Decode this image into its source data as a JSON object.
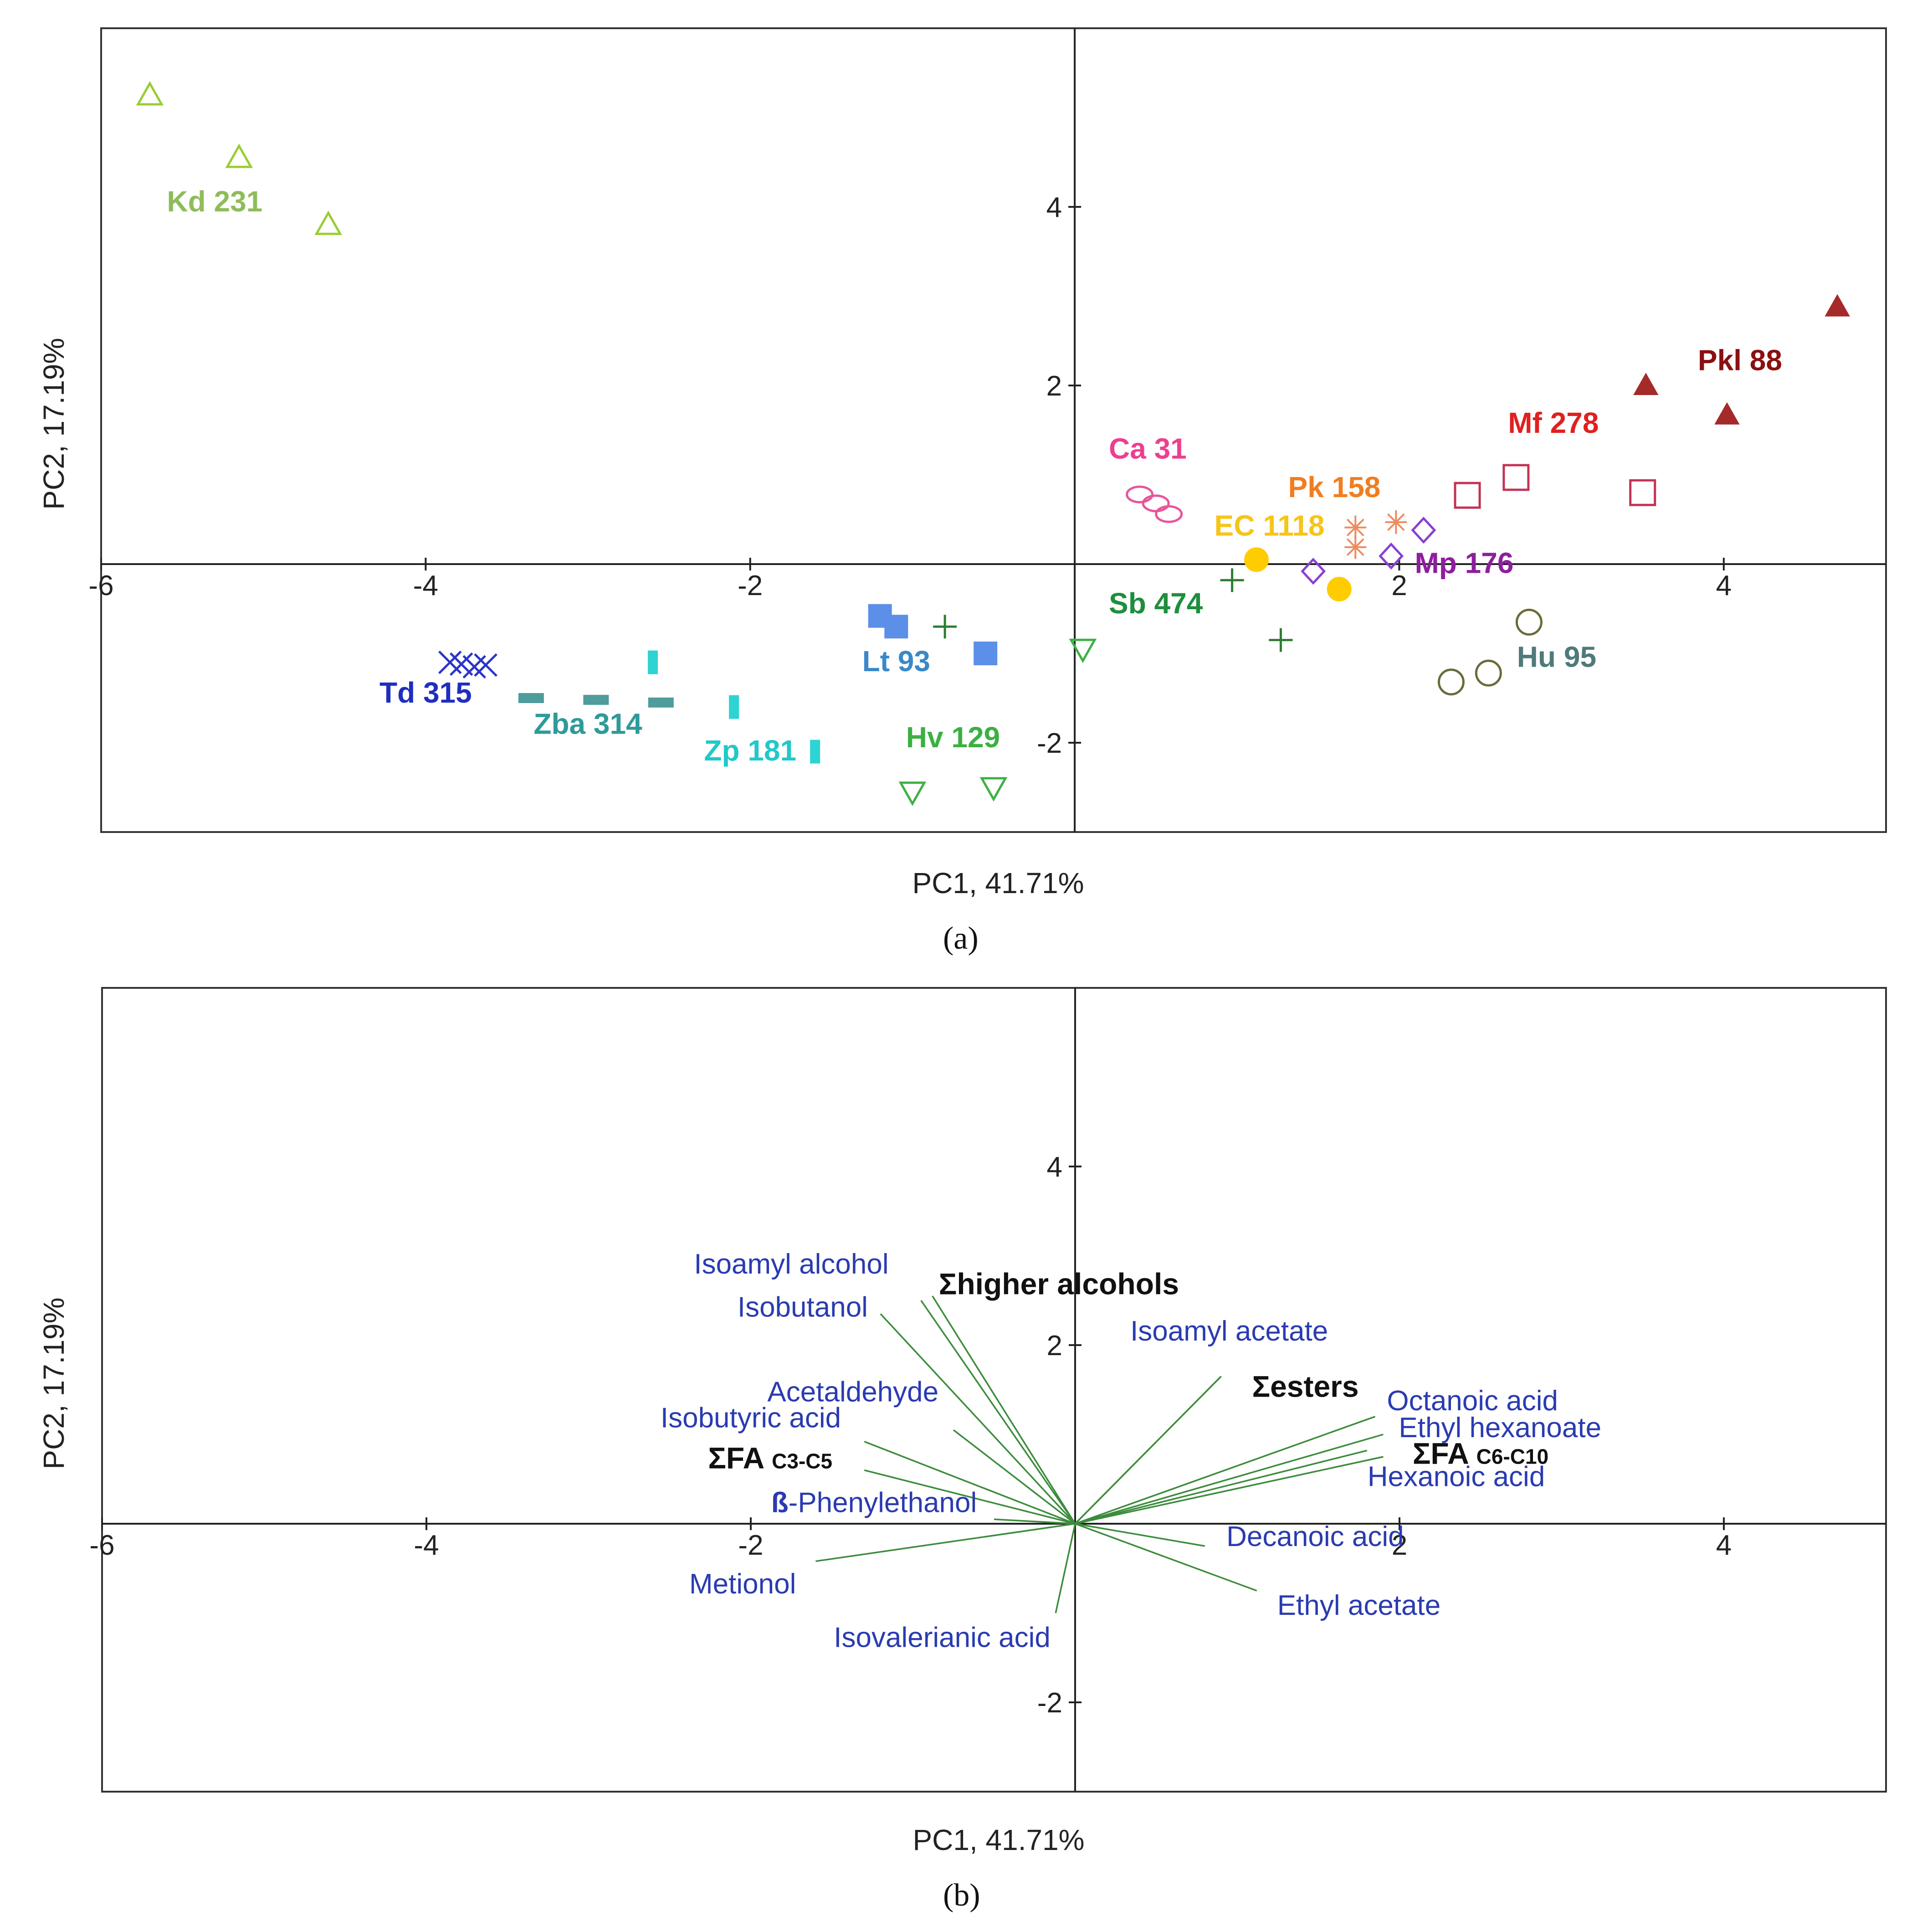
{
  "chart_data": [
    {
      "type": "scatter",
      "panel": "a",
      "xlabel": "PC1, 41.71%",
      "ylabel": "PC2, 17.19%",
      "xlim": [
        -6,
        5
      ],
      "ylim": [
        -3,
        6
      ],
      "xticks": [
        -6,
        -4,
        -2,
        2,
        4
      ],
      "yticks": [
        4,
        2,
        -2
      ],
      "groups": [
        {
          "name": "Kd 231",
          "marker": "triangle-open",
          "color": "#9ACD32",
          "label_color": "#8FBC5A",
          "points": [
            [
              -5.7,
              5.25
            ],
            [
              -5.15,
              4.55
            ],
            [
              -4.6,
              3.8
            ]
          ],
          "label_at": [
            -5.3,
            3.95
          ]
        },
        {
          "name": "Td 315",
          "marker": "x",
          "color": "#2B35C8",
          "label_color": "#1F2EBF",
          "points": [
            [
              -3.85,
              -1.1
            ],
            [
              -3.78,
              -1.12
            ],
            [
              -3.7,
              -1.15
            ],
            [
              -3.63,
              -1.13
            ]
          ],
          "label_at": [
            -4.0,
            -1.55
          ]
        },
        {
          "name": "Zba 314",
          "marker": "hbar",
          "color": "#4F9C9C",
          "label_color": "#2E9A9A",
          "points": [
            [
              -3.35,
              -1.5
            ],
            [
              -2.95,
              -1.52
            ],
            [
              -2.55,
              -1.55
            ]
          ],
          "label_at": [
            -3.0,
            -1.9
          ]
        },
        {
          "name": "Zp 181",
          "marker": "vbar",
          "color": "#2ED3D3",
          "label_color": "#22C8C8",
          "points": [
            [
              -2.6,
              -1.1
            ],
            [
              -2.1,
              -1.6
            ],
            [
              -1.6,
              -2.1
            ]
          ],
          "label_at": [
            -2.0,
            -2.2
          ]
        },
        {
          "name": "Lt 93",
          "marker": "square-filled",
          "color": "#5B8FE8",
          "label_color": "#3A88C8",
          "points": [
            [
              -1.2,
              -0.58
            ],
            [
              -1.1,
              -0.7
            ],
            [
              -0.55,
              -1.0
            ]
          ],
          "label_at": [
            -1.1,
            -1.2
          ]
        },
        {
          "name": "Hv 129",
          "marker": "triangle-down-open",
          "color": "#3CB043",
          "label_color": "#3CB043",
          "points": [
            [
              -1.0,
              -2.55
            ],
            [
              -0.5,
              -2.5
            ],
            [
              0.05,
              -0.95
            ]
          ],
          "label_at": [
            -0.75,
            -2.05
          ]
        },
        {
          "name": "Sb 474",
          "marker": "plus",
          "color": "#2E7D32",
          "label_color": "#1E8E3E",
          "points": [
            [
              -0.8,
              -0.7
            ],
            [
              0.97,
              -0.18
            ],
            [
              1.27,
              -0.85
            ]
          ],
          "label_at": [
            0.5,
            -0.55
          ]
        },
        {
          "name": "Ca 31",
          "marker": "ellipse",
          "color": "#E8559B",
          "label_color": "#EE3F8F",
          "points": [
            [
              0.4,
              0.78
            ],
            [
              0.5,
              0.68
            ],
            [
              0.58,
              0.56
            ]
          ],
          "label_at": [
            0.45,
            1.18
          ]
        },
        {
          "name": "EC 1118",
          "marker": "circle-filled",
          "color": "#FFCC00",
          "label_color": "#F5C518",
          "points": [
            [
              1.12,
              0.05
            ],
            [
              1.63,
              -0.28
            ]
          ],
          "label_at": [
            1.2,
            0.32
          ]
        },
        {
          "name": "Pk 158",
          "marker": "asterisk",
          "color": "#F08A5D",
          "label_color": "#F07E20",
          "points": [
            [
              1.73,
              0.41
            ],
            [
              1.73,
              0.19
            ],
            [
              1.98,
              0.47
            ]
          ],
          "label_at": [
            1.6,
            0.75
          ]
        },
        {
          "name": "Mp 176",
          "marker": "diamond-open",
          "color": "#8A3FD1",
          "label_color": "#8E1F9E",
          "points": [
            [
              1.47,
              -0.08
            ],
            [
              1.95,
              0.09
            ],
            [
              2.15,
              0.38
            ]
          ],
          "label_at": [
            2.4,
            -0.1
          ]
        },
        {
          "name": "Hu 95",
          "marker": "circle-open",
          "color": "#6B6B3A",
          "label_color": "#4F7A7A",
          "points": [
            [
              2.32,
              -1.32
            ],
            [
              2.55,
              -1.22
            ],
            [
              2.8,
              -0.65
            ]
          ],
          "label_at": [
            2.97,
            -1.15
          ]
        },
        {
          "name": "Mf 278",
          "marker": "square-open",
          "color": "#C23352",
          "label_color": "#E02020",
          "points": [
            [
              2.42,
              0.77
            ],
            [
              2.72,
              0.97
            ],
            [
              3.5,
              0.8
            ]
          ],
          "label_at": [
            2.95,
            1.47
          ]
        },
        {
          "name": "Pkl 88",
          "marker": "triangle-filled",
          "color": "#A52A2A",
          "label_color": "#8B1010",
          "points": [
            [
              3.52,
              2.0
            ],
            [
              4.02,
              1.67
            ],
            [
              4.7,
              2.88
            ]
          ],
          "label_at": [
            4.1,
            2.17
          ]
        }
      ]
    },
    {
      "type": "biplot",
      "panel": "b",
      "xlabel": "PC1, 41.71%",
      "ylabel": "PC2, 17.19%",
      "xlim": [
        -6,
        5
      ],
      "ylim": [
        -3,
        6
      ],
      "xticks": [
        -6,
        -4,
        -2,
        2,
        4
      ],
      "yticks": [
        4,
        2,
        -2
      ],
      "vectors": [
        {
          "name": "Isoamyl alcohol",
          "end": [
            -0.95,
            2.5
          ],
          "label_at": [
            -1.75,
            2.8
          ],
          "color": "#2A3BB0"
        },
        {
          "name": "Isobutanol",
          "end": [
            -1.2,
            2.35
          ],
          "label_at": [
            -1.68,
            2.32
          ],
          "color": "#2A3BB0"
        },
        {
          "name": "Σhigher alcohols",
          "end": [
            -0.88,
            2.55
          ],
          "label_at": [
            -0.1,
            2.57
          ],
          "color": "#111111",
          "bold": true
        },
        {
          "name": "Acetaldehyde",
          "end": [
            -0.75,
            1.05
          ],
          "label_at": [
            -1.37,
            1.37
          ],
          "color": "#2A3BB0"
        },
        {
          "name": "Isobutyric acid",
          "end": [
            -1.3,
            0.92
          ],
          "label_at": [
            -2.0,
            1.08
          ],
          "color": "#2A3BB0"
        },
        {
          "name": "ΣFA C3-C5",
          "end": [
            -1.3,
            0.6
          ],
          "label_at": [
            -1.88,
            0.62
          ],
          "color": "#111111",
          "bold": true
        },
        {
          "name": "ß-Phenylethanol",
          "end": [
            -0.5,
            0.05
          ],
          "label_at": [
            -1.24,
            0.13
          ],
          "color": "#2A3BB0"
        },
        {
          "name": "Metionol",
          "end": [
            -1.6,
            -0.42
          ],
          "label_at": [
            -2.05,
            -0.78
          ],
          "color": "#2A3BB0"
        },
        {
          "name": "Isovalerianic acid",
          "end": [
            -0.12,
            -1.0
          ],
          "label_at": [
            -0.82,
            -1.38
          ],
          "color": "#2A3BB0"
        },
        {
          "name": "Isoamyl acetate",
          "end": [
            0.9,
            1.65
          ],
          "label_at": [
            0.95,
            2.05
          ],
          "color": "#2A3BB0"
        },
        {
          "name": "Σesters",
          "end": [
            0.9,
            1.65
          ],
          "label_at": [
            1.42,
            1.42
          ],
          "color": "#111111",
          "bold": true
        },
        {
          "name": "Octanoic acid",
          "end": [
            1.85,
            1.2
          ],
          "label_at": [
            2.45,
            1.27
          ],
          "color": "#2A3BB0"
        },
        {
          "name": "Ethyl hexanoate",
          "end": [
            1.9,
            1.0
          ],
          "label_at": [
            2.62,
            0.97
          ],
          "color": "#2A3BB0"
        },
        {
          "name": "ΣFA C6-C10",
          "end": [
            1.8,
            0.82
          ],
          "label_at": [
            2.5,
            0.67
          ],
          "color": "#111111",
          "bold": true
        },
        {
          "name": "Hexanoic acid",
          "end": [
            1.9,
            0.75
          ],
          "label_at": [
            2.35,
            0.42
          ],
          "color": "#2A3BB0"
        },
        {
          "name": "Decanoic acid",
          "end": [
            0.8,
            -0.25
          ],
          "label_at": [
            1.48,
            -0.25
          ],
          "color": "#2A3BB0"
        },
        {
          "name": "Ethyl acetate",
          "end": [
            1.12,
            -0.75
          ],
          "label_at": [
            1.75,
            -1.02
          ],
          "color": "#2A3BB0"
        }
      ]
    }
  ],
  "captions": {
    "a": "(a)",
    "b": "(b)"
  }
}
